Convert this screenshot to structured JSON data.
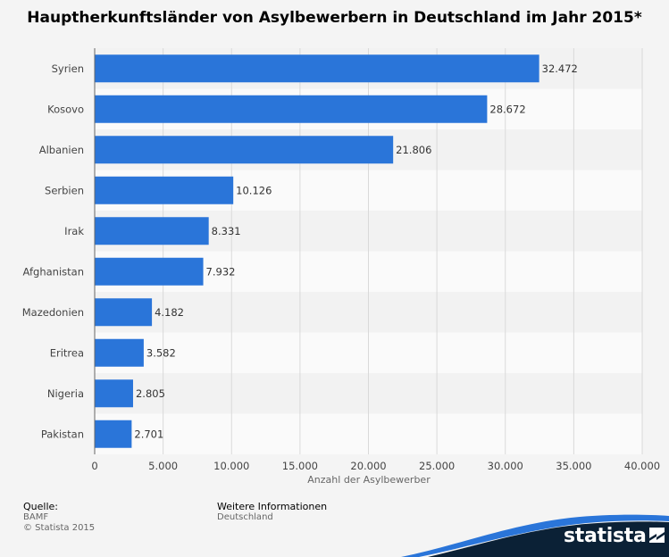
{
  "chart_data": {
    "type": "bar",
    "orientation": "horizontal",
    "title": "Hauptherkunftsländer von Asylbewerbern in Deutschland im Jahr 2015*",
    "categories": [
      "Syrien",
      "Kosovo",
      "Albanien",
      "Serbien",
      "Irak",
      "Afghanistan",
      "Mazedonien",
      "Eritrea",
      "Nigeria",
      "Pakistan"
    ],
    "values": [
      32472,
      28672,
      21806,
      10126,
      8331,
      7932,
      4182,
      3582,
      2805,
      2701
    ],
    "value_labels": [
      "32.472",
      "28.672",
      "21.806",
      "10.126",
      "8.331",
      "7.932",
      "4.182",
      "3.582",
      "2.805",
      "2.701"
    ],
    "xlabel": "Anzahl der Asylbewerber",
    "ylabel": "",
    "xlim": [
      0,
      40000
    ],
    "xticks": [
      0,
      5000,
      10000,
      15000,
      20000,
      25000,
      30000,
      35000,
      40000
    ],
    "xtick_labels": [
      "0",
      "5.000",
      "10.000",
      "15.000",
      "20.000",
      "25.000",
      "30.000",
      "35.000",
      "40.000"
    ],
    "grid": true,
    "bar_color": "#2a75d9"
  },
  "footer": {
    "source_heading": "Quelle:",
    "source_lines": [
      "BAMF",
      "© Statista 2015"
    ],
    "info_heading": "Weitere Informationen",
    "info_lines": [
      "Deutschland"
    ]
  },
  "brand": {
    "name": "statista",
    "dark_color": "#0b2136",
    "accent_color": "#2a75d9"
  }
}
